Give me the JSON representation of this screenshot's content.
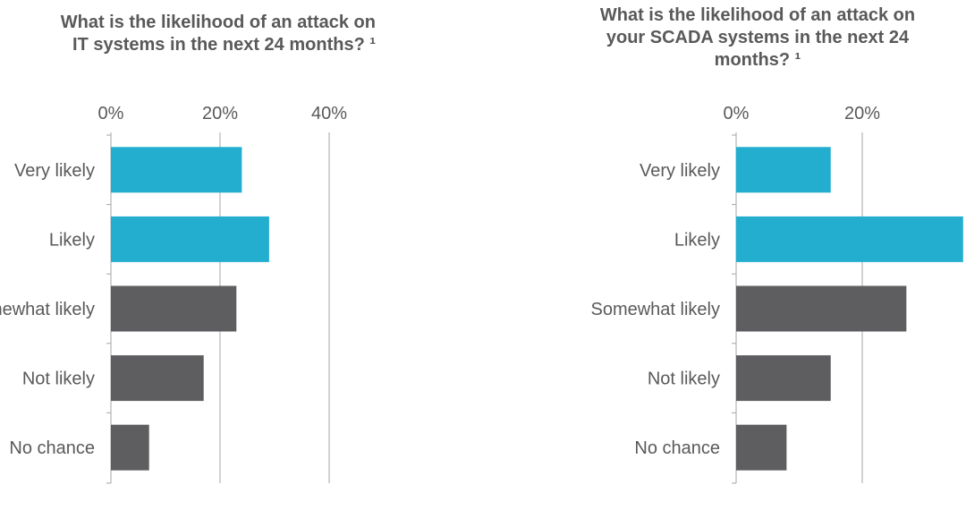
{
  "chart_data": [
    {
      "type": "bar",
      "orientation": "horizontal",
      "title": "What is the likelihood of an attack on IT systems in the next 24 months? ¹",
      "title_lines": [
        "What is the likelihood of an attack on",
        "IT systems in the next 24 months? ¹"
      ],
      "categories": [
        "Very likely",
        "Likely",
        "Somewhat likely",
        "Not likely",
        "No chance"
      ],
      "values": [
        24,
        29,
        23,
        17,
        7
      ],
      "bar_colors": [
        "#23aed0",
        "#23aed0",
        "#5e5e60",
        "#5e5e60",
        "#5e5e60"
      ],
      "xlim": [
        0,
        40
      ],
      "xticks": [
        "0%",
        "20%",
        "40%"
      ],
      "xtick_values": [
        0,
        20,
        40
      ],
      "grid": true,
      "legend": "none"
    },
    {
      "type": "bar",
      "orientation": "horizontal",
      "title": "What is the likelihood of an attack on your SCADA systems in the next 24 months? ¹",
      "title_lines": [
        "What is the likelihood of an attack on",
        "your SCADA systems in the next 24",
        "months? ¹"
      ],
      "categories": [
        "Very likely",
        "Likely",
        "Somewhat likely",
        "Not likely",
        "No chance"
      ],
      "values": [
        15,
        36,
        27,
        15,
        8
      ],
      "bar_colors": [
        "#23aed0",
        "#23aed0",
        "#5e5e60",
        "#5e5e60",
        "#5e5e60"
      ],
      "xlim": [
        0,
        40
      ],
      "xticks": [
        "0%",
        "20%"
      ],
      "xtick_values": [
        0,
        20
      ],
      "grid": true,
      "legend": "none"
    }
  ]
}
